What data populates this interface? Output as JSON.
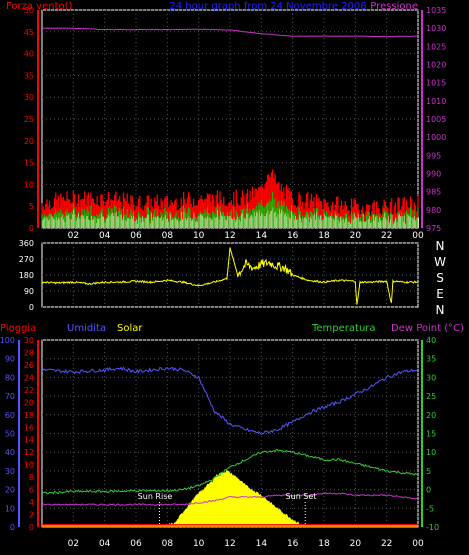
{
  "title": "24 hour graph from 24 Novembre 2008",
  "colors": {
    "background": "#000000",
    "axis": "#ffffff",
    "grid": "#555555",
    "wind": "#ff0000",
    "gust": "#00cc00",
    "wind_avg": "#ffffff",
    "pressure": "#cc33cc",
    "direction": "#ffff00",
    "rain": "#ff0000",
    "humidity": "#5555ff",
    "solar": "#ffff00",
    "temperature": "#33cc33",
    "dewpoint": "#cc33cc",
    "title": "#2222ff"
  },
  "x_ticks": [
    "02",
    "04",
    "06",
    "08",
    "10",
    "12",
    "14",
    "16",
    "18",
    "20",
    "22",
    "00"
  ],
  "top_panel": {
    "left_label": "Forza vento()",
    "right_label": "Pressione",
    "left_ticks": [
      "50",
      "45",
      "40",
      "35",
      "30",
      "25",
      "20",
      "15",
      "10",
      "5",
      "0"
    ],
    "right_ticks": [
      "1035",
      "1030",
      "1025",
      "1020",
      "1015",
      "1010",
      "1005",
      "1000",
      "995",
      "990",
      "985",
      "980",
      "975"
    ]
  },
  "direction_panel": {
    "left_ticks": [
      "360",
      "270",
      "180",
      "90",
      "0"
    ],
    "compass": [
      "N",
      "W",
      "S",
      "E",
      "N"
    ]
  },
  "bottom_panel": {
    "label_rain": "Pioggia",
    "label_humidity": "Umidita",
    "label_solar": "Solar",
    "label_temperature": "Temperatura",
    "label_dewpoint": "Dew Point (°C)",
    "humidity_ticks": [
      "100",
      "90",
      "80",
      "70",
      "60",
      "50",
      "40",
      "30",
      "20",
      "10",
      "0"
    ],
    "rain_ticks": [
      "30",
      "28",
      "26",
      "24",
      "22",
      "20",
      "18",
      "16",
      "14",
      "12",
      "10",
      "8",
      "6",
      "4",
      "2",
      "0"
    ],
    "temp_ticks": [
      "40",
      "35",
      "30",
      "25",
      "20",
      "15",
      "10",
      "5",
      "0",
      "-5",
      "-10"
    ],
    "sunrise_label": "Sun Rise",
    "sunset_label": "Sun Set"
  },
  "chart_data": [
    {
      "type": "line",
      "name": "wind-pressure",
      "x_unit": "hour",
      "ylim": [
        0,
        50
      ],
      "y2lim": [
        975,
        1035
      ],
      "series": [
        {
          "name": "Forza vento()",
          "axis": "left",
          "x": [
            0,
            2,
            4,
            6,
            8,
            10,
            12,
            13,
            14,
            14.5,
            15,
            16,
            18,
            20,
            22,
            24
          ],
          "values": [
            5,
            6,
            6,
            5,
            5,
            6,
            6,
            6,
            8,
            13,
            9,
            6,
            5,
            4,
            4,
            5
          ]
        },
        {
          "name": "Pressione",
          "axis": "right",
          "x": [
            0,
            2,
            4,
            6,
            8,
            10,
            12,
            14,
            16,
            18,
            20,
            22,
            24
          ],
          "values": [
            1030,
            1030,
            1029.6,
            1029.6,
            1029.6,
            1029.7,
            1029.5,
            1028.5,
            1027.8,
            1027.8,
            1027.8,
            1027.7,
            1027.8
          ]
        }
      ]
    },
    {
      "type": "line",
      "name": "wind-direction",
      "x_unit": "hour",
      "ylim": [
        0,
        360
      ],
      "series": [
        {
          "name": "direction",
          "x": [
            0,
            1,
            2,
            3,
            4,
            5,
            6,
            7,
            8,
            9,
            10,
            11,
            11.8,
            12,
            12.5,
            13,
            13.5,
            14,
            14.5,
            15,
            15.5,
            16,
            17,
            18,
            19,
            20,
            20.1,
            20.3,
            21,
            22,
            22.3,
            22.4,
            22.6,
            23,
            24
          ],
          "values": [
            140,
            135,
            140,
            130,
            140,
            140,
            145,
            140,
            150,
            140,
            120,
            140,
            160,
            330,
            180,
            240,
            220,
            240,
            250,
            230,
            220,
            180,
            150,
            140,
            150,
            145,
            10,
            140,
            140,
            145,
            20,
            145,
            145,
            140,
            140
          ]
        }
      ]
    },
    {
      "type": "line",
      "name": "weather",
      "x_unit": "hour",
      "ylim": [
        0,
        100
      ],
      "y_temp_lim": [
        -10,
        40
      ],
      "y_rain_lim": [
        0,
        30
      ],
      "series": [
        {
          "name": "Umidita",
          "axis": "humidity",
          "x": [
            0,
            2,
            4,
            5,
            6,
            8,
            9,
            10,
            11,
            12,
            13,
            14,
            15,
            16,
            17,
            18,
            19,
            20,
            21,
            22,
            23,
            24
          ],
          "values": [
            84,
            83,
            84,
            85,
            83,
            85,
            84,
            80,
            62,
            55,
            52,
            50,
            52,
            56,
            61,
            64,
            67,
            71,
            75,
            80,
            83,
            84
          ]
        },
        {
          "name": "Temperatura",
          "axis": "temp",
          "x": [
            0,
            2,
            4,
            6,
            8,
            9,
            10,
            11,
            12,
            13,
            14,
            15,
            16,
            17,
            18,
            19,
            20,
            21,
            22,
            23,
            24
          ],
          "values": [
            -1,
            -0.5,
            -0.5,
            -0.3,
            -0.3,
            0,
            1,
            3,
            6,
            8,
            10,
            10.5,
            10,
            9,
            8,
            8,
            7,
            6,
            5,
            4.5,
            4
          ]
        },
        {
          "name": "Dew Point (°C)",
          "axis": "temp",
          "x": [
            0,
            2,
            4,
            6,
            8,
            9,
            10,
            11,
            12,
            13,
            14,
            15,
            16,
            17,
            18,
            19,
            20,
            21,
            22,
            23,
            24
          ],
          "values": [
            -4,
            -4,
            -4,
            -4,
            -4,
            -4,
            -3.5,
            -3,
            -2,
            -2,
            -2,
            -1.5,
            -1.5,
            -1.5,
            -1,
            -1,
            -1.5,
            -1.5,
            -1.5,
            -2,
            -2.5
          ]
        },
        {
          "name": "Solar",
          "axis": "humidity",
          "x": [
            0,
            7.5,
            8.5,
            9,
            10,
            10.8,
            11.2,
            11.8,
            12.5,
            13,
            14,
            15,
            16,
            16.8,
            24
          ],
          "values": [
            0,
            0,
            2,
            8,
            18,
            24,
            28,
            30,
            26,
            22,
            17,
            10,
            4,
            0,
            0
          ]
        },
        {
          "name": "Pioggia",
          "axis": "rain",
          "x": [
            0,
            24
          ],
          "values": [
            0.3,
            0.3
          ]
        }
      ],
      "sunrise_hour": 7.5,
      "sunset_hour": 16.8
    }
  ]
}
